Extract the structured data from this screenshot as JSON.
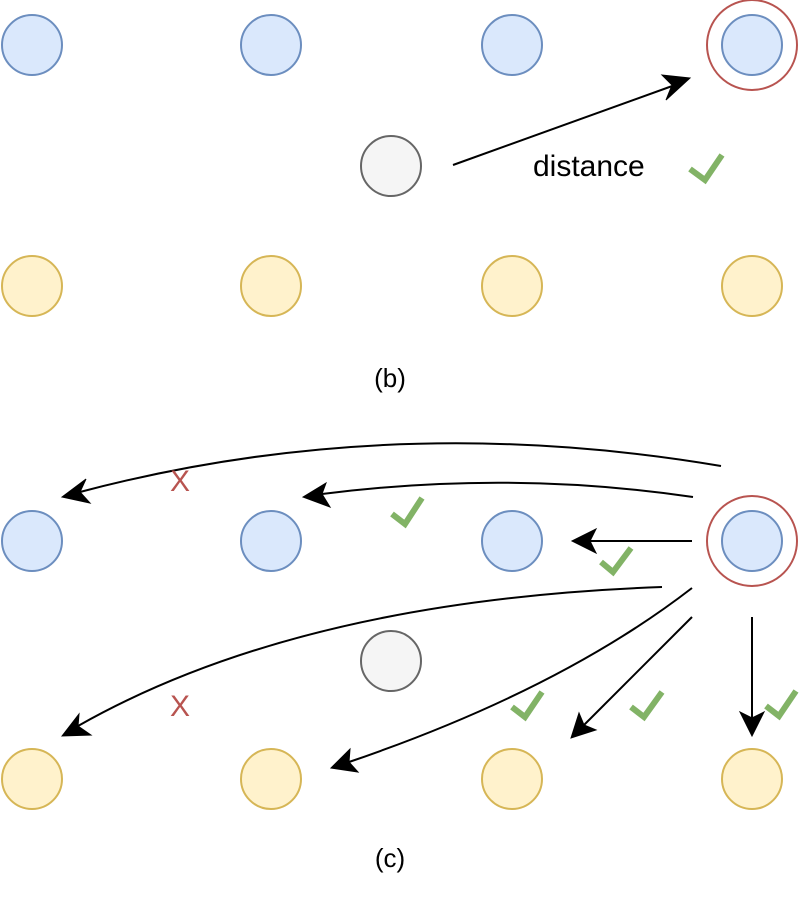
{
  "panel_b": {
    "caption": "(b)",
    "distance_label": "distance"
  },
  "panel_c": {
    "caption": "(c)",
    "reject_marks": [
      "X",
      "X"
    ]
  },
  "colors": {
    "blue_fill": "#dae8fc",
    "blue_stroke": "#6c8ebf",
    "yellow_fill": "#fff2cc",
    "yellow_stroke": "#d6b656",
    "gray_fill": "#f5f5f5",
    "gray_stroke": "#666666",
    "highlight_ring": "#b85450",
    "check_mark": "#82b366",
    "reject_mark": "#b85450"
  }
}
